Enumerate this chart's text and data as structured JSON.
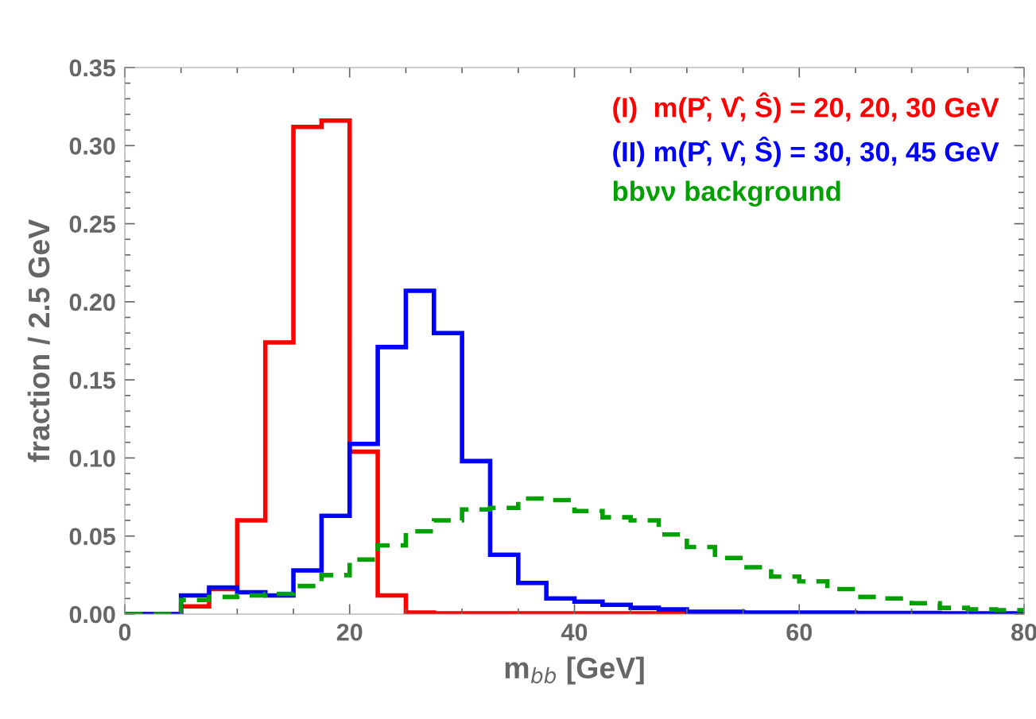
{
  "chart_data": {
    "type": "histogram",
    "xlabel": "m$_{bb}$ [GeV]",
    "ylabel": "fraction / 2.5 GeV",
    "bins": [
      0,
      2.5,
      5,
      7.5,
      10,
      12.5,
      15,
      17.5,
      20,
      22.5,
      25,
      27.5,
      30,
      32.5,
      35,
      37.5,
      40,
      42.5,
      45,
      47.5,
      50,
      52.5,
      55,
      57.5,
      60,
      62.5,
      65,
      67.5,
      70,
      72.5,
      75,
      77.5,
      80
    ],
    "series": [
      {
        "name": "(I)  m(P̂, V̂, Ŝ) = 20, 20, 30 GeV",
        "color": "#ff0000",
        "line_style": "solid",
        "values": [
          0,
          0,
          0.005,
          0.016,
          0.06,
          0.174,
          0.312,
          0.316,
          0.104,
          0.012,
          0.001,
          0.0005,
          0.0005,
          0.0005,
          0.0005,
          0.0005,
          0.0005,
          0.0005,
          0.0005,
          0.0005,
          0.0005,
          0.0005,
          0,
          0,
          0,
          0,
          0,
          0,
          0,
          0,
          0,
          0
        ]
      },
      {
        "name": "(II) m(P̂, V̂, Ŝ) = 30, 30, 45 GeV",
        "color": "#0000ff",
        "line_style": "solid",
        "values": [
          0,
          0,
          0.012,
          0.017,
          0.014,
          0.012,
          0.028,
          0.063,
          0.109,
          0.171,
          0.207,
          0.18,
          0.098,
          0.038,
          0.02,
          0.01,
          0.008,
          0.006,
          0.004,
          0.003,
          0.0015,
          0.0015,
          0.001,
          0.001,
          0.001,
          0.001,
          0.0008,
          0.0008,
          0.0008,
          0.0005,
          0.0005,
          0.0005
        ]
      },
      {
        "name": "bbνν background",
        "color": "#00a000",
        "line_style": "dashed",
        "values": [
          0,
          0,
          0.009,
          0.011,
          0.012,
          0.013,
          0.018,
          0.025,
          0.035,
          0.044,
          0.053,
          0.06,
          0.067,
          0.068,
          0.074,
          0.073,
          0.066,
          0.062,
          0.06,
          0.051,
          0.043,
          0.036,
          0.03,
          0.024,
          0.021,
          0.016,
          0.011,
          0.01,
          0.007,
          0.004,
          0.003,
          0.0025
        ]
      }
    ],
    "xlim": [
      0,
      80
    ],
    "xticks": [
      0,
      20,
      40,
      60,
      80
    ],
    "ylim": [
      0,
      0.35
    ],
    "yticks": [
      {
        "value": 0,
        "label": "0.00"
      },
      {
        "value": 0.05,
        "label": "0.05"
      },
      {
        "value": 0.1,
        "label": "0.10"
      },
      {
        "value": 0.15,
        "label": "0.15"
      },
      {
        "value": 0.2,
        "label": "0.20"
      },
      {
        "value": 0.25,
        "label": "0.25"
      },
      {
        "value": 0.3,
        "label": "0.30"
      },
      {
        "value": 0.35,
        "label": "0.35"
      }
    ],
    "legend": "top right",
    "grid": false
  }
}
